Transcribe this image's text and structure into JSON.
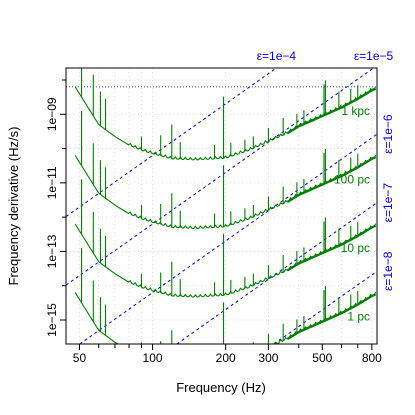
{
  "chart_data": {
    "type": "line",
    "xlabel": "Frequency (Hz)",
    "ylabel": "Frequency derivative (Hz/s)",
    "x_scale": "log",
    "y_scale": "log",
    "xlim": [
      44,
      840
    ],
    "ylim_log10": [
      -15.7,
      -7.65
    ],
    "x_ticks": [
      50,
      100,
      200,
      300,
      500,
      800
    ],
    "x_tick_labels": [
      "50",
      "100",
      "200",
      "300",
      "500",
      "800"
    ],
    "x_minor_ticks": [
      60,
      70,
      80,
      90,
      400,
      600,
      700
    ],
    "y_ticks_log10": [
      -9,
      -11,
      -13,
      -15
    ],
    "y_tick_labels": [
      "1e−09",
      "1e−11",
      "1e−13",
      "1e−15"
    ],
    "y_minor_ticks_log10": [
      -8,
      -10,
      -12,
      -14
    ],
    "grid": true,
    "upper_limit_line_log10": -8.2,
    "ellipticity_lines": {
      "label_color": "#0000ff",
      "lines": [
        {
          "label": "ε=1e−4",
          "log10_fdot_at_100Hz": -10.2
        },
        {
          "label": "ε=1e−5",
          "log10_fdot_at_100Hz": -12.2
        },
        {
          "label": "ε=1e−6",
          "log10_fdot_at_100Hz": -14.2
        },
        {
          "label": "ε=1e−7",
          "log10_fdot_at_100Hz": -16.2
        },
        {
          "label": "ε=1e−8",
          "log10_fdot_at_100Hz": -18.2
        }
      ]
    },
    "series_color": "#008000",
    "series": [
      {
        "name": "1 kpc",
        "label_log10": -8.9
      },
      {
        "name": "100 pc",
        "label_log10": -10.9
      },
      {
        "name": "10 pc",
        "label_log10": -12.9
      },
      {
        "name": "1 pc",
        "label_log10": -14.9
      }
    ],
    "curve_shape": {
      "offset_step_log10": -2.0,
      "points": [
        {
          "f": 48,
          "log10_fdot": -8.2
        },
        {
          "f": 60,
          "log10_fdot": -9.3
        },
        {
          "f": 70,
          "log10_fdot": -9.65
        },
        {
          "f": 80,
          "log10_fdot": -9.9
        },
        {
          "f": 90,
          "log10_fdot": -10.05
        },
        {
          "f": 100,
          "log10_fdot": -10.15
        },
        {
          "f": 120,
          "log10_fdot": -10.3
        },
        {
          "f": 150,
          "log10_fdot": -10.33
        },
        {
          "f": 180,
          "log10_fdot": -10.3
        },
        {
          "f": 200,
          "log10_fdot": -10.28
        },
        {
          "f": 250,
          "log10_fdot": -10.05
        },
        {
          "f": 300,
          "log10_fdot": -9.8
        },
        {
          "f": 360,
          "log10_fdot": -9.55
        },
        {
          "f": 400,
          "log10_fdot": -9.35
        },
        {
          "f": 500,
          "log10_fdot": -9.05
        },
        {
          "f": 600,
          "log10_fdot": -8.8
        },
        {
          "f": 700,
          "log10_fdot": -8.55
        },
        {
          "f": 800,
          "log10_fdot": -8.3
        },
        {
          "f": 830,
          "log10_fdot": -8.25
        }
      ],
      "spikes": [
        {
          "f": 51,
          "height_log10": 1.6
        },
        {
          "f": 57,
          "height_log10": 1.2
        },
        {
          "f": 61,
          "height_log10": 1.0
        },
        {
          "f": 64,
          "height_log10": 0.9
        },
        {
          "f": 90,
          "height_log10": 0.4
        },
        {
          "f": 108,
          "height_log10": 0.6
        },
        {
          "f": 120,
          "height_log10": 1.0
        },
        {
          "f": 130,
          "height_log10": 0.5
        },
        {
          "f": 180,
          "height_log10": 0.4
        },
        {
          "f": 196,
          "height_log10": 1.8
        },
        {
          "f": 210,
          "height_log10": 0.4
        },
        {
          "f": 240,
          "height_log10": 0.35
        },
        {
          "f": 260,
          "height_log10": 0.35
        },
        {
          "f": 300,
          "height_log10": 0.4
        },
        {
          "f": 345,
          "height_log10": 0.5
        },
        {
          "f": 393,
          "height_log10": 0.4
        },
        {
          "f": 420,
          "height_log10": 0.4
        },
        {
          "f": 508,
          "height_log10": 0.9
        },
        {
          "f": 515,
          "height_log10": 1.0
        },
        {
          "f": 585,
          "height_log10": 0.5
        },
        {
          "f": 655,
          "height_log10": 0.4
        },
        {
          "f": 700,
          "height_log10": 0.4
        }
      ]
    }
  }
}
